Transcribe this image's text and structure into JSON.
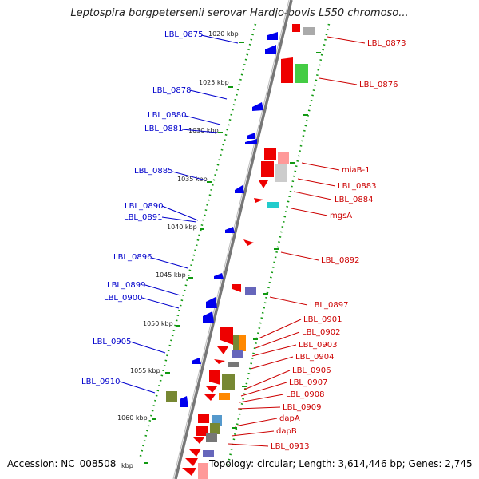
{
  "title": "Leptospira borgpetersenii serovar Hardjo-bovis L550 chromoso...",
  "footer": {
    "accession": "Accession: NC_008508",
    "summary": "Topology: circular; Length: 3,614,446 bp; Genes: 2,745"
  },
  "ticks": [
    {
      "label": "1020 kbp"
    },
    {
      "label": "1025 kbp"
    },
    {
      "label": "1030 kbp"
    },
    {
      "label": "1035 kbp"
    },
    {
      "label": "1040 kbp"
    },
    {
      "label": "1045 kbp"
    },
    {
      "label": "1050 kbp"
    },
    {
      "label": "1055 kbp"
    },
    {
      "label": "1060 kbp"
    },
    {
      "label": "kbp"
    }
  ],
  "left_labels": [
    {
      "text": "LBL_0875"
    },
    {
      "text": "LBL_0878"
    },
    {
      "text": "LBL_0880"
    },
    {
      "text": "LBL_0881"
    },
    {
      "text": "LBL_0885"
    },
    {
      "text": "LBL_0890"
    },
    {
      "text": "LBL_0891"
    },
    {
      "text": "LBL_0896"
    },
    {
      "text": "LBL_0899"
    },
    {
      "text": "LBL_0900"
    },
    {
      "text": "LBL_0905"
    },
    {
      "text": "LBL_0910"
    }
  ],
  "right_labels": [
    {
      "text": "LBL_0873"
    },
    {
      "text": "LBL_0876"
    },
    {
      "text": "miaB-1"
    },
    {
      "text": "LBL_0883"
    },
    {
      "text": "LBL_0884"
    },
    {
      "text": "mgsA"
    },
    {
      "text": "LBL_0892"
    },
    {
      "text": "LBL_0897"
    },
    {
      "text": "LBL_0901"
    },
    {
      "text": "LBL_0902"
    },
    {
      "text": "LBL_0903"
    },
    {
      "text": "LBL_0904"
    },
    {
      "text": "LBL_0906"
    },
    {
      "text": "LBL_0907"
    },
    {
      "text": "LBL_0908"
    },
    {
      "text": "LBL_0909"
    },
    {
      "text": "dapA"
    },
    {
      "text": "dapB"
    },
    {
      "text": "LBL_0913"
    }
  ],
  "colors": {
    "forward_strand": "#0000ee",
    "reverse_strand": "#ee0000",
    "dotted_ring": "#119911",
    "backbone": "#777777",
    "label_left": "#0000cc",
    "label_right": "#cc0000",
    "feature_green": "#44cc44",
    "feature_olive": "#778833",
    "feature_grey": "#aaaaaa",
    "feature_cyan": "#22cccc",
    "feature_purple": "#6666bb",
    "feature_orange": "#ff8800",
    "feature_pink": "#ff9999"
  }
}
